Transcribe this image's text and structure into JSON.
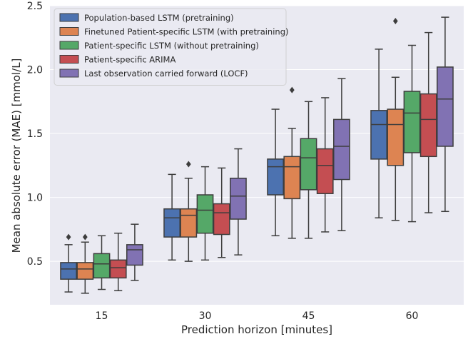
{
  "chart_data": {
    "type": "box",
    "xlabel": "Prediction horizon [minutes]",
    "ylabel": "Mean absolute error (MAE) [mmol/L]",
    "categories": [
      "15",
      "30",
      "45",
      "60"
    ],
    "ylim": [
      0.16,
      2.5
    ],
    "yticks": [
      0.5,
      1.0,
      1.5,
      2.0,
      2.5
    ],
    "ytick_labels": [
      "0.5",
      "1.0",
      "1.5",
      "2.0",
      "2.5"
    ],
    "grid": true,
    "legend_position": "top-left",
    "series": [
      {
        "name": "Population-based LSTM (pretraining)",
        "color": "#4c72b0",
        "boxes": [
          {
            "whislo": 0.26,
            "q1": 0.36,
            "med": 0.44,
            "q3": 0.49,
            "whishi": 0.63,
            "fliers": [
              0.69
            ]
          },
          {
            "whislo": 0.51,
            "q1": 0.69,
            "med": 0.84,
            "q3": 0.91,
            "whishi": 1.18,
            "fliers": []
          },
          {
            "whislo": 0.7,
            "q1": 1.02,
            "med": 1.24,
            "q3": 1.3,
            "whishi": 1.69,
            "fliers": []
          },
          {
            "whislo": 0.84,
            "q1": 1.3,
            "med": 1.57,
            "q3": 1.68,
            "whishi": 2.16,
            "fliers": []
          }
        ]
      },
      {
        "name": "Finetuned Patient-specific LSTM (with pretraining)",
        "color": "#dd8452",
        "boxes": [
          {
            "whislo": 0.25,
            "q1": 0.36,
            "med": 0.44,
            "q3": 0.49,
            "whishi": 0.65,
            "fliers": [
              0.69
            ]
          },
          {
            "whislo": 0.5,
            "q1": 0.69,
            "med": 0.86,
            "q3": 0.91,
            "whishi": 1.15,
            "fliers": [
              1.26
            ]
          },
          {
            "whislo": 0.68,
            "q1": 0.99,
            "med": 1.24,
            "q3": 1.32,
            "whishi": 1.54,
            "fliers": [
              1.84
            ]
          },
          {
            "whislo": 0.82,
            "q1": 1.25,
            "med": 1.57,
            "q3": 1.69,
            "whishi": 1.94,
            "fliers": [
              2.38
            ]
          }
        ]
      },
      {
        "name": "Patient-specific LSTM (without pretraining)",
        "color": "#55a868",
        "boxes": [
          {
            "whislo": 0.28,
            "q1": 0.37,
            "med": 0.48,
            "q3": 0.56,
            "whishi": 0.7,
            "fliers": []
          },
          {
            "whislo": 0.51,
            "q1": 0.72,
            "med": 0.9,
            "q3": 1.02,
            "whishi": 1.24,
            "fliers": []
          },
          {
            "whislo": 0.68,
            "q1": 1.06,
            "med": 1.31,
            "q3": 1.46,
            "whishi": 1.75,
            "fliers": []
          },
          {
            "whislo": 0.81,
            "q1": 1.35,
            "med": 1.66,
            "q3": 1.83,
            "whishi": 2.19,
            "fliers": []
          }
        ]
      },
      {
        "name": "Patient-specific ARIMA",
        "color": "#c44e52",
        "boxes": [
          {
            "whislo": 0.27,
            "q1": 0.37,
            "med": 0.45,
            "q3": 0.51,
            "whishi": 0.72,
            "fliers": []
          },
          {
            "whislo": 0.53,
            "q1": 0.71,
            "med": 0.88,
            "q3": 0.95,
            "whishi": 1.23,
            "fliers": []
          },
          {
            "whislo": 0.73,
            "q1": 1.03,
            "med": 1.25,
            "q3": 1.38,
            "whishi": 1.78,
            "fliers": []
          },
          {
            "whislo": 0.88,
            "q1": 1.32,
            "med": 1.61,
            "q3": 1.81,
            "whishi": 2.29,
            "fliers": []
          }
        ]
      },
      {
        "name": "Last observation carried forward (LOCF)",
        "color": "#8172b3",
        "boxes": [
          {
            "whislo": 0.35,
            "q1": 0.47,
            "med": 0.59,
            "q3": 0.63,
            "whishi": 0.79,
            "fliers": []
          },
          {
            "whislo": 0.55,
            "q1": 0.83,
            "med": 1.01,
            "q3": 1.15,
            "whishi": 1.38,
            "fliers": []
          },
          {
            "whislo": 0.74,
            "q1": 1.14,
            "med": 1.4,
            "q3": 1.61,
            "whishi": 1.93,
            "fliers": []
          },
          {
            "whislo": 0.89,
            "q1": 1.4,
            "med": 1.77,
            "q3": 2.02,
            "whishi": 2.41,
            "fliers": []
          }
        ]
      }
    ]
  },
  "colors": {
    "plot_background": "#eaeaf2",
    "grid": "#ffffff",
    "line": "#3d3d3d"
  }
}
